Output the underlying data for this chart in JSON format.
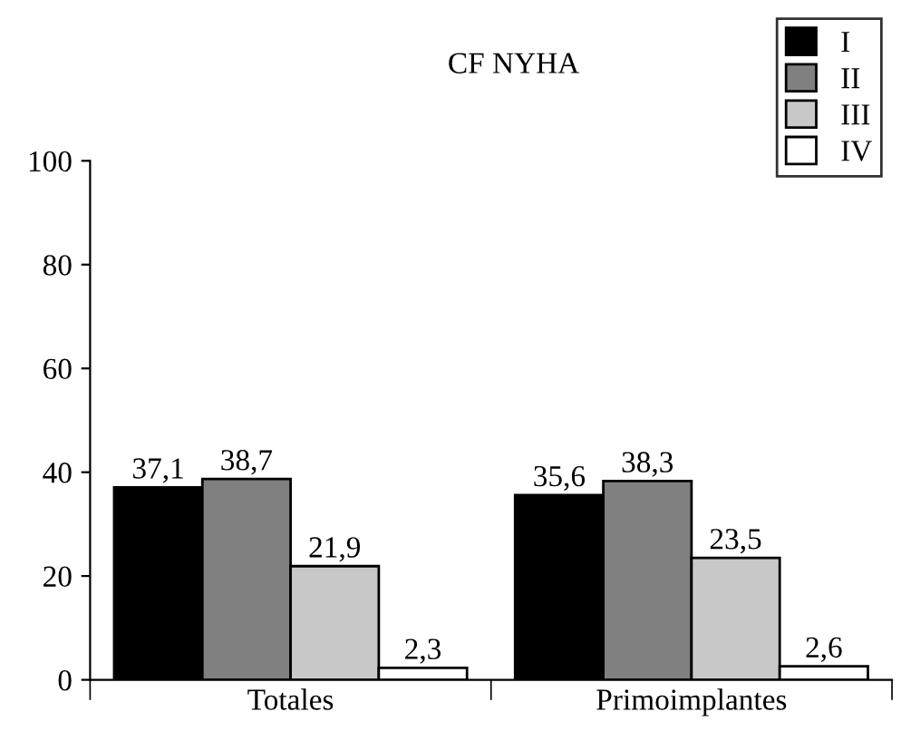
{
  "chart_data": {
    "type": "bar",
    "title": "CF NYHA",
    "categories": [
      "Totales",
      "Primoimplantes"
    ],
    "series": [
      {
        "name": "I",
        "color": "#000000",
        "values": [
          37.1,
          35.6
        ],
        "value_labels": [
          "37,1",
          "35,6"
        ]
      },
      {
        "name": "II",
        "color": "#808080",
        "values": [
          38.7,
          38.3
        ],
        "value_labels": [
          "38,7",
          "38,3"
        ]
      },
      {
        "name": "III",
        "color": "#c8c8c8",
        "values": [
          21.9,
          23.5
        ],
        "value_labels": [
          "21,9",
          "23,5"
        ]
      },
      {
        "name": "IV",
        "color": "#ffffff",
        "values": [
          2.3,
          2.6
        ],
        "value_labels": [
          "2,3",
          "2,6"
        ]
      }
    ],
    "ylim": [
      0,
      100
    ],
    "yticks": [
      0,
      20,
      40,
      60,
      80,
      100
    ],
    "grid": false,
    "legend": "top right"
  }
}
